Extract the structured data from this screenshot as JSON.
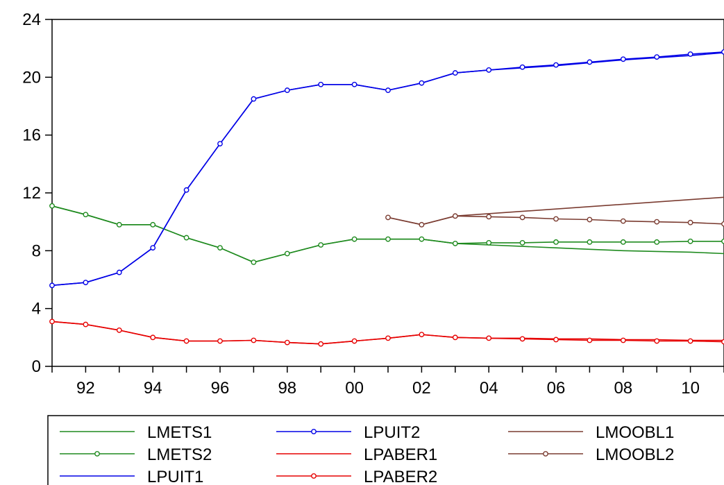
{
  "chart_data": {
    "type": "line",
    "title": "",
    "xlabel": "",
    "ylabel": "",
    "xlim": [
      1991,
      2011
    ],
    "ylim": [
      0,
      24
    ],
    "yticks": [
      0,
      4,
      8,
      12,
      16,
      20,
      24
    ],
    "ytick_labels": [
      "0",
      "4",
      "8",
      "12",
      "16",
      "20",
      "24"
    ],
    "xticks": [
      1992,
      1994,
      1996,
      1998,
      2000,
      2002,
      2004,
      2006,
      2008,
      2010
    ],
    "xtick_labels": [
      "92",
      "94",
      "96",
      "98",
      "00",
      "02",
      "04",
      "06",
      "08",
      "10"
    ],
    "grid": false,
    "legend_position": "bottom",
    "series": [
      {
        "name": "LMETS1",
        "color": "#1e8a1e",
        "marker": "none",
        "x": [
          1991,
          1992,
          1993,
          1994,
          1995,
          1996,
          1997,
          1998,
          1999,
          2000,
          2001,
          2002,
          2003,
          2004,
          2005,
          2006,
          2007,
          2008,
          2009,
          2010,
          2011
        ],
        "values": [
          11.1,
          10.5,
          9.8,
          9.8,
          8.9,
          8.2,
          7.2,
          7.8,
          8.4,
          8.8,
          8.8,
          8.8,
          8.5,
          8.4,
          8.3,
          8.2,
          8.1,
          8.0,
          7.95,
          7.9,
          7.8
        ]
      },
      {
        "name": "LMETS2",
        "color": "#1e8a1e",
        "marker": "circle",
        "x": [
          1991,
          1992,
          1993,
          1994,
          1995,
          1996,
          1997,
          1998,
          1999,
          2000,
          2001,
          2002,
          2003,
          2004,
          2005,
          2006,
          2007,
          2008,
          2009,
          2010,
          2011
        ],
        "values": [
          11.1,
          10.5,
          9.8,
          9.8,
          8.9,
          8.2,
          7.2,
          7.8,
          8.4,
          8.8,
          8.8,
          8.8,
          8.5,
          8.55,
          8.55,
          8.6,
          8.6,
          8.6,
          8.6,
          8.65,
          8.65
        ]
      },
      {
        "name": "LPUIT1",
        "color": "#0000e6",
        "marker": "none",
        "x": [
          1991,
          1992,
          1993,
          1994,
          1995,
          1996,
          1997,
          1998,
          1999,
          2000,
          2001,
          2002,
          2003,
          2004,
          2005,
          2006,
          2007,
          2008,
          2009,
          2010,
          2011
        ],
        "values": [
          5.6,
          5.8,
          6.5,
          8.2,
          12.2,
          15.4,
          18.5,
          19.1,
          19.5,
          19.5,
          19.1,
          19.6,
          20.3,
          20.5,
          20.65,
          20.8,
          21.0,
          21.2,
          21.35,
          21.5,
          21.7
        ]
      },
      {
        "name": "LPUIT2",
        "color": "#0000e6",
        "marker": "circle",
        "x": [
          1991,
          1992,
          1993,
          1994,
          1995,
          1996,
          1997,
          1998,
          1999,
          2000,
          2001,
          2002,
          2003,
          2004,
          2005,
          2006,
          2007,
          2008,
          2009,
          2010,
          2011
        ],
        "values": [
          5.6,
          5.8,
          6.5,
          8.2,
          12.2,
          15.4,
          18.5,
          19.1,
          19.5,
          19.5,
          19.1,
          19.6,
          20.3,
          20.5,
          20.7,
          20.85,
          21.05,
          21.25,
          21.4,
          21.6,
          21.75
        ]
      },
      {
        "name": "LPABER1",
        "color": "#e60000",
        "marker": "none",
        "x": [
          1991,
          1992,
          1993,
          1994,
          1995,
          1996,
          1997,
          1998,
          1999,
          2000,
          2001,
          2002,
          2003,
          2004,
          2005,
          2006,
          2007,
          2008,
          2009,
          2010,
          2011
        ],
        "values": [
          3.1,
          2.9,
          2.5,
          2.0,
          1.75,
          1.75,
          1.8,
          1.65,
          1.55,
          1.75,
          1.95,
          2.2,
          2.0,
          1.95,
          1.95,
          1.9,
          1.9,
          1.85,
          1.85,
          1.8,
          1.8
        ]
      },
      {
        "name": "LPABER2",
        "color": "#e60000",
        "marker": "circle",
        "x": [
          1991,
          1992,
          1993,
          1994,
          1995,
          1996,
          1997,
          1998,
          1999,
          2000,
          2001,
          2002,
          2003,
          2004,
          2005,
          2006,
          2007,
          2008,
          2009,
          2010,
          2011
        ],
        "values": [
          3.1,
          2.9,
          2.5,
          2.0,
          1.75,
          1.75,
          1.8,
          1.65,
          1.55,
          1.75,
          1.95,
          2.2,
          2.0,
          1.95,
          1.9,
          1.85,
          1.8,
          1.8,
          1.75,
          1.75,
          1.7
        ]
      },
      {
        "name": "LMOOBL1",
        "color": "#7a3b30",
        "marker": "none",
        "x": [
          2001,
          2002,
          2003,
          2011
        ],
        "values": [
          10.3,
          9.8,
          10.4,
          11.7
        ]
      },
      {
        "name": "LMOOBL2",
        "color": "#7a3b30",
        "marker": "circle",
        "x": [
          2001,
          2002,
          2003,
          2004,
          2005,
          2006,
          2007,
          2008,
          2009,
          2010,
          2011
        ],
        "values": [
          10.3,
          9.8,
          10.4,
          10.35,
          10.3,
          10.2,
          10.15,
          10.05,
          10.0,
          9.95,
          9.85
        ]
      }
    ],
    "legend_order": [
      "LMETS1",
      "LPUIT2",
      "LMOOBL1",
      "LMETS2",
      "LPABER1",
      "LMOOBL2",
      "LPUIT1",
      "LPABER2"
    ]
  }
}
